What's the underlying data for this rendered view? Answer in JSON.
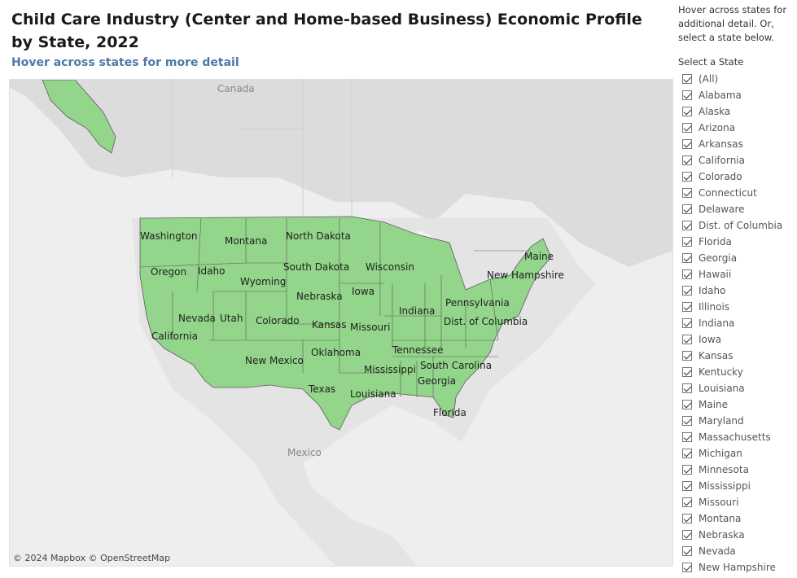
{
  "title": "Child Care Industry (Center and Home-based Business) Economic Profile by State, 2022",
  "subtitle": "Hover across states for more detail",
  "map": {
    "fill_color": "#93d58a",
    "background_labels": [
      "Canada",
      "Mexico"
    ],
    "copyright": "© 2024 Mapbox © OpenStreetMap",
    "state_labels": [
      "Washington",
      "Montana",
      "North Dakota",
      "Oregon",
      "Idaho",
      "South Dakota",
      "Wisconsin",
      "Maine",
      "Wyoming",
      "New Hampshire",
      "Nebraska",
      "Iowa",
      "Nevada",
      "Utah",
      "Colorado",
      "Indiana",
      "Pennsylvania",
      "Kansas",
      "Missouri",
      "Dist. of Columbia",
      "California",
      "Oklahoma",
      "New Mexico",
      "Tennessee",
      "South Carolina",
      "Mississippi",
      "Georgia",
      "Texas",
      "Louisiana",
      "Florida"
    ]
  },
  "filter": {
    "hint": "Hover across states for additional detail. Or, select a state below.",
    "heading": "Select a State",
    "items": [
      "(All)",
      "Alabama",
      "Alaska",
      "Arizona",
      "Arkansas",
      "California",
      "Colorado",
      "Connecticut",
      "Delaware",
      "Dist. of Columbia",
      "Florida",
      "Georgia",
      "Hawaii",
      "Idaho",
      "Illinois",
      "Indiana",
      "Iowa",
      "Kansas",
      "Kentucky",
      "Louisiana",
      "Maine",
      "Maryland",
      "Massachusetts",
      "Michigan",
      "Minnesota",
      "Mississippi",
      "Missouri",
      "Montana",
      "Nebraska",
      "Nevada",
      "New Hampshire"
    ]
  }
}
